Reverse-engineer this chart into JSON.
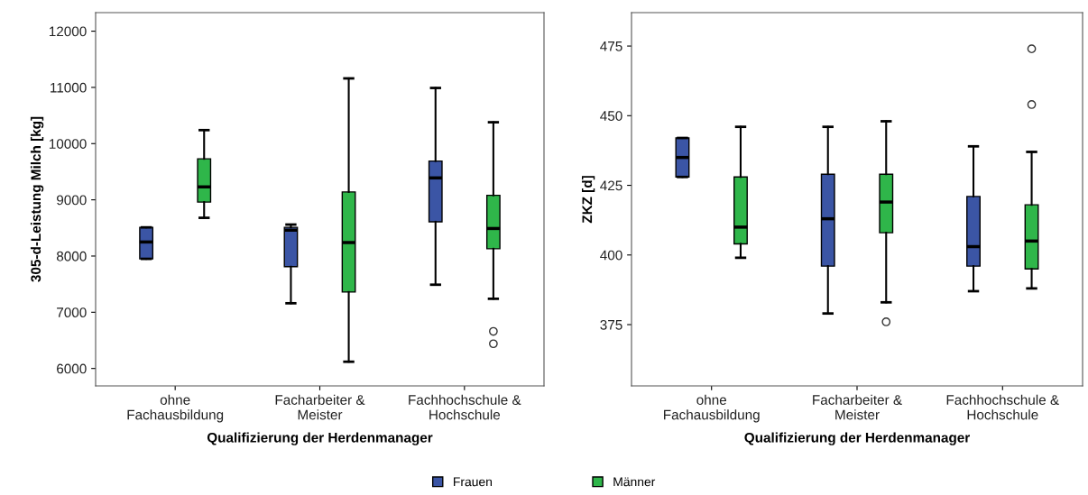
{
  "chart_data": [
    {
      "type": "box",
      "categories": [
        "ohne\nFachausbildung",
        "Facharbeiter &\nMeister",
        "Fachhochschule &\nHochschule"
      ],
      "xlabel": "Qualifizierung der Herdenmanager",
      "ylabel": "305-d-Leistung Milch [kg]",
      "ylim": [
        5690,
        12330
      ],
      "yticks": [
        6000,
        7000,
        8000,
        9000,
        10000,
        11000,
        12000
      ],
      "grid": false,
      "legend": "bottom",
      "series": [
        {
          "name": "Frauen",
          "color": "#3b55a5",
          "boxes": [
            {
              "low": 7950,
              "q1": 7950,
              "median": 8250,
              "q3": 8510,
              "high": 8510
            },
            {
              "low": 7160,
              "q1": 7810,
              "median": 8460,
              "q3": 8510,
              "high": 8560
            },
            {
              "low": 7490,
              "q1": 8610,
              "median": 9390,
              "q3": 9690,
              "high": 10990
            }
          ]
        },
        {
          "name": "Männer",
          "color": "#2fb64a",
          "boxes": [
            {
              "low": 8680,
              "q1": 8960,
              "median": 9230,
              "q3": 9730,
              "high": 10240
            },
            {
              "low": 6120,
              "q1": 7360,
              "median": 8240,
              "q3": 9140,
              "high": 11160
            },
            {
              "low": 7240,
              "q1": 8130,
              "median": 8490,
              "q3": 9080,
              "high": 10380,
              "outliers": [
                6660,
                6440
              ]
            }
          ]
        }
      ]
    },
    {
      "type": "box",
      "categories": [
        "ohne\nFachausbildung",
        "Facharbeiter &\nMeister",
        "Fachhochschule &\nHochschule"
      ],
      "xlabel": "Qualifizierung der Herdenmanager",
      "ylabel": "ZKZ [d]",
      "ylim": [
        353,
        487
      ],
      "yticks": [
        375,
        400,
        425,
        450,
        475
      ],
      "grid": false,
      "series": [
        {
          "name": "Frauen",
          "color": "#3b55a5",
          "boxes": [
            {
              "low": 428,
              "q1": 428,
              "median": 435,
              "q3": 442,
              "high": 442
            },
            {
              "low": 379,
              "q1": 396,
              "median": 413,
              "q3": 429,
              "high": 446
            },
            {
              "low": 387,
              "q1": 396,
              "median": 403,
              "q3": 421,
              "high": 439
            }
          ]
        },
        {
          "name": "Männer",
          "color": "#2fb64a",
          "boxes": [
            {
              "low": 399,
              "q1": 404,
              "median": 410,
              "q3": 428,
              "high": 446
            },
            {
              "low": 383,
              "q1": 408,
              "median": 419,
              "q3": 429,
              "high": 448,
              "outliers": [
                376
              ]
            },
            {
              "low": 388,
              "q1": 395,
              "median": 405,
              "q3": 418,
              "high": 437,
              "outliers": [
                474,
                454
              ]
            }
          ]
        }
      ]
    }
  ]
}
